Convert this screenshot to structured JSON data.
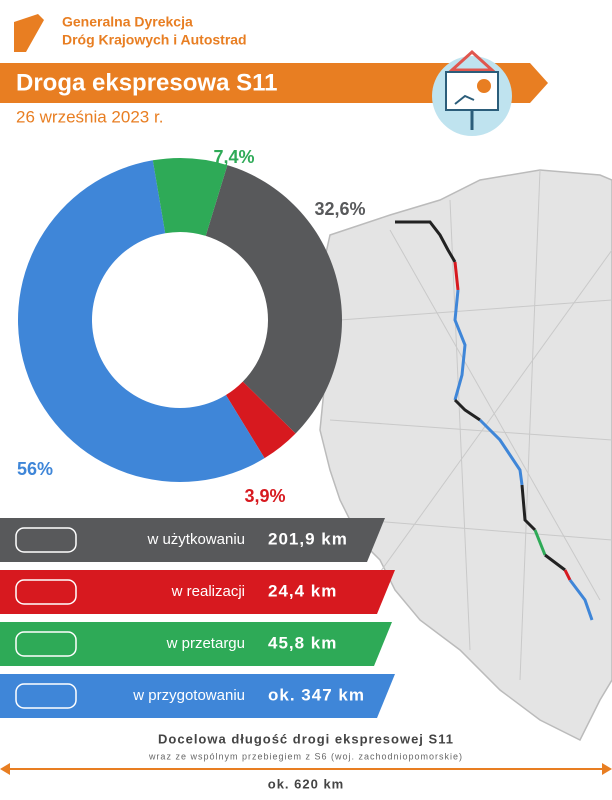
{
  "header": {
    "org": [
      "Generalna Dyrekcja",
      "Dróg Krajowych i Autostrad"
    ],
    "title": "Droga ekspresowa S11",
    "date": "26 września 2023 r."
  },
  "chart_data": {
    "type": "pie",
    "values": [
      32.6,
      3.9,
      56,
      7.4
    ],
    "value_labels": [
      "32,6%",
      "3,9%",
      "56%",
      "7,4%"
    ],
    "colors": [
      "#58595b",
      "#d7191f",
      "#3f86d8",
      "#2eaa57"
    ]
  },
  "rows": [
    {
      "label": "w użytkowaniu",
      "length": "201,9 km",
      "color": "#58595b"
    },
    {
      "label": "w realizacji",
      "length": "24,4 km",
      "color": "#d7191f"
    },
    {
      "label": "w przetargu",
      "length": "45,8 km",
      "color": "#2eaa57"
    },
    {
      "label": "w przygotowaniu",
      "length": "ok. 347 km",
      "color": "#3f86d8"
    }
  ],
  "footer": {
    "title": "Docelowa długość drogi ekspresowej S11",
    "subtitle": "wraz ze wspólnym przebiegiem z S6 (woj. zachodniopomorskie)",
    "length": "ok. 620 km"
  }
}
